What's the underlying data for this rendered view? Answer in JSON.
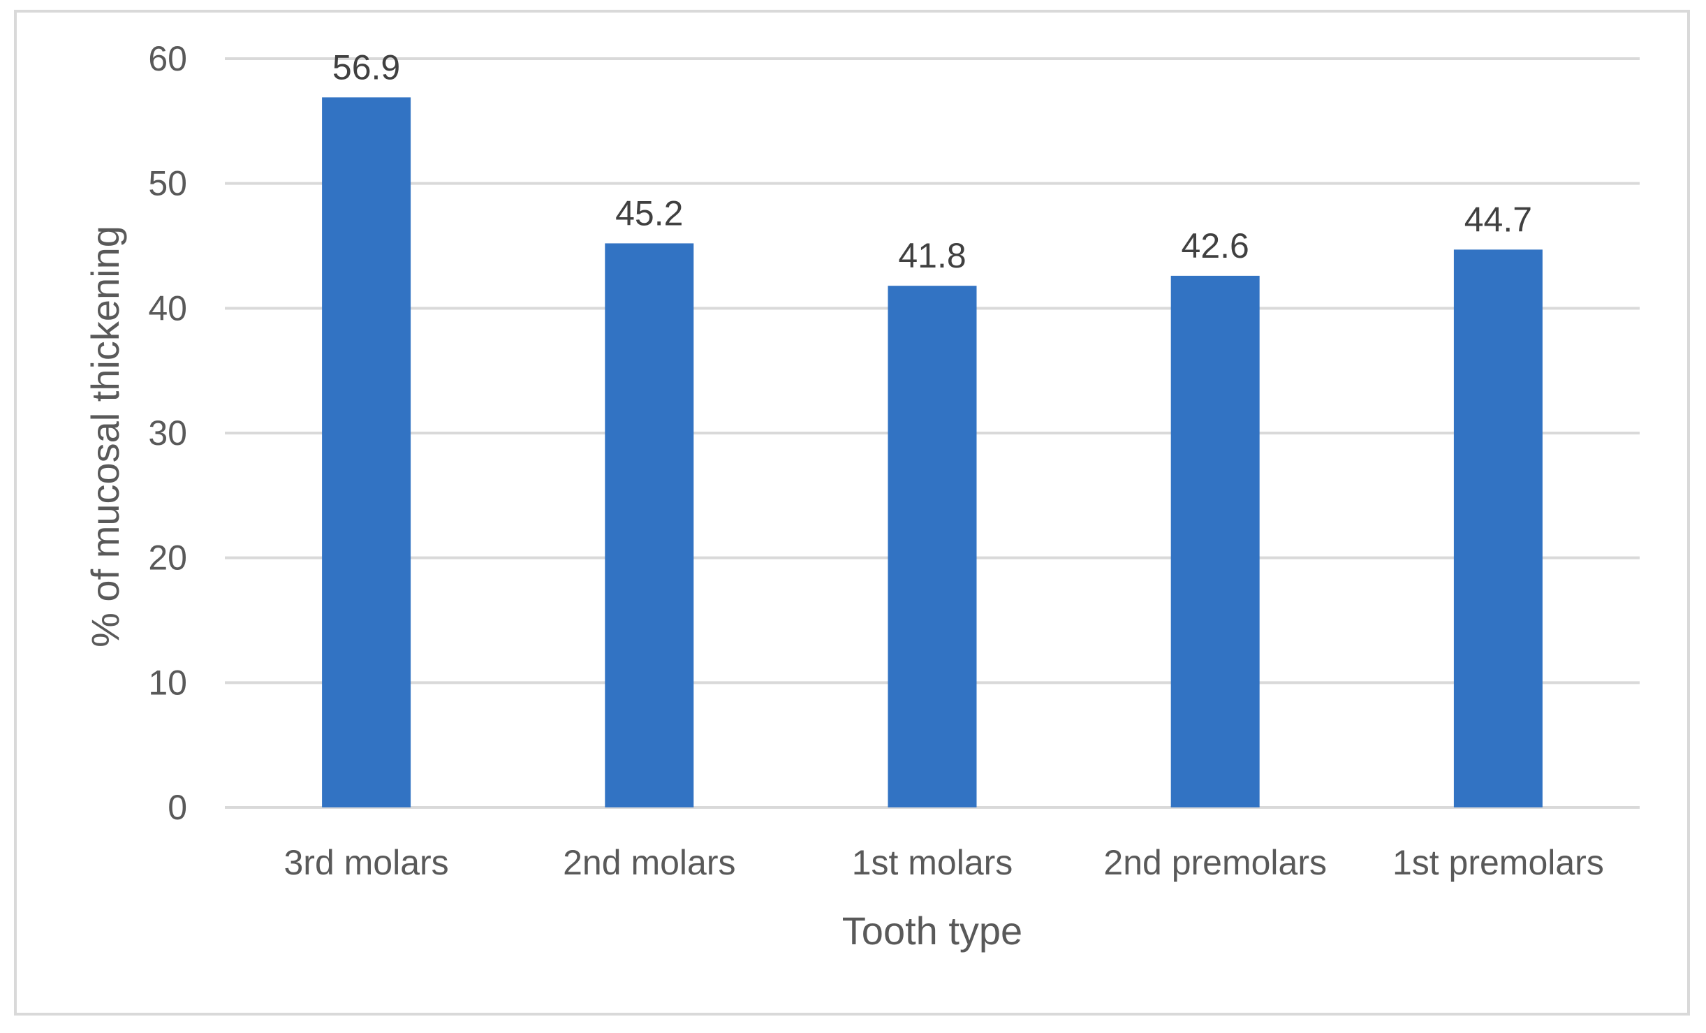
{
  "chart_data": {
    "type": "bar",
    "categories": [
      "3rd molars",
      "2nd molars",
      "1st molars",
      "2nd premolars",
      "1st premolars"
    ],
    "values": [
      56.9,
      45.2,
      41.8,
      42.6,
      44.7
    ],
    "data_labels": [
      "56.9",
      "45.2",
      "41.8",
      "42.6",
      "44.7"
    ],
    "title": "",
    "xlabel": "Tooth type",
    "ylabel": "% of mucosal thickening",
    "ylim": [
      0,
      60
    ],
    "yticks": [
      0,
      10,
      20,
      30,
      40,
      50,
      60
    ],
    "ytick_labels": [
      "0",
      "10",
      "20",
      "30",
      "40",
      "50",
      "60"
    ],
    "grid": true,
    "legend": "none",
    "bar_color": "#3273C3",
    "grid_color": "#d9d9d9"
  }
}
